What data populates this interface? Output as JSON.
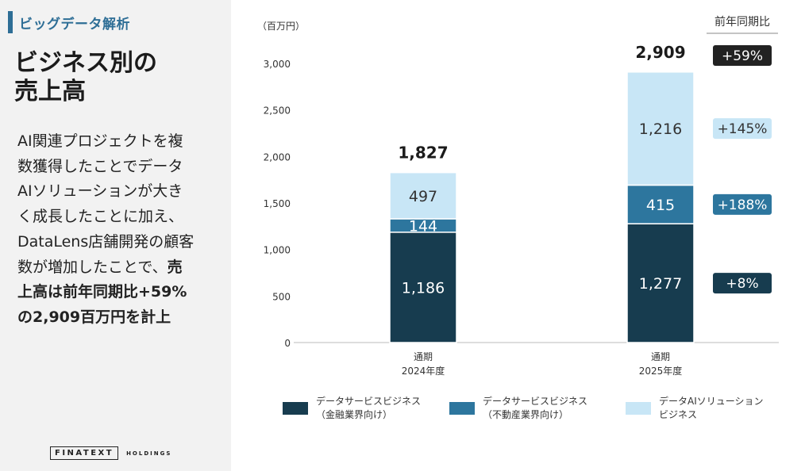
{
  "section_tag": "ビッグデータ解析",
  "title": [
    "ビジネス別の",
    "売上高"
  ],
  "description": [
    [
      {
        "t": "AI関連プロジェクトを複",
        "b": false
      }
    ],
    [
      {
        "t": "数獲得したことでデータ",
        "b": false
      }
    ],
    [
      {
        "t": "AIソリューションが大き",
        "b": false
      }
    ],
    [
      {
        "t": "く成長したことに加え、",
        "b": false
      }
    ],
    [
      {
        "t": "DataLens店舗開発の顧客",
        "b": false
      }
    ],
    [
      {
        "t": "数が増加したことで、",
        "b": false
      },
      {
        "t": "売",
        "b": true
      }
    ],
    [
      {
        "t": "上高は前年同期比+59%",
        "b": true
      }
    ],
    [
      {
        "t": "の2,909百万円を計上",
        "b": true
      }
    ]
  ],
  "logo": {
    "name": "FINATEXT",
    "suffix": "HOLDINGS"
  },
  "chart_data": {
    "type": "bar",
    "stacked": true,
    "unit_label": "（百万円）",
    "ylim": [
      0,
      3000
    ],
    "yticks": [
      0,
      500,
      1000,
      1500,
      2000,
      2500,
      3000
    ],
    "ytick_labels": [
      "0",
      "500",
      "1,000",
      "1,500",
      "2,000",
      "2,500",
      "3,000"
    ],
    "categories": [
      [
        "通期",
        "2024年度"
      ],
      [
        "通期",
        "2025年度"
      ]
    ],
    "totals": [
      1827,
      2909
    ],
    "total_labels": [
      "1,827",
      "2,909"
    ],
    "series": [
      {
        "name": [
          "データサービスビジネス",
          "（金融業界向け）"
        ],
        "color": "#173c4f",
        "text_color": "#ffffff",
        "values": [
          1186,
          1277
        ],
        "labels": [
          "1,186",
          "1,277"
        ]
      },
      {
        "name": [
          "データサービスビジネス",
          "（不動産業界向け）"
        ],
        "color": "#2d769e",
        "text_color": "#ffffff",
        "values": [
          144,
          415
        ],
        "labels": [
          "144",
          "415"
        ]
      },
      {
        "name": [
          "データAIソリューション",
          "ビジネス"
        ],
        "color": "#c8e6f6",
        "text_color": "#333333",
        "values": [
          497,
          1216
        ],
        "labels": [
          "497",
          "1,216"
        ]
      }
    ],
    "yoy": {
      "header": "前年同期比",
      "total": {
        "label": "+59%",
        "bg": "#222222",
        "color": "#ffffff"
      },
      "items": [
        {
          "label": "+8%",
          "bg": "#173c4f",
          "color": "#ffffff"
        },
        {
          "label": "+188%",
          "bg": "#2d769e",
          "color": "#ffffff"
        },
        {
          "label": "+145%",
          "bg": "#c8e6f6",
          "color": "#333333"
        }
      ]
    }
  }
}
